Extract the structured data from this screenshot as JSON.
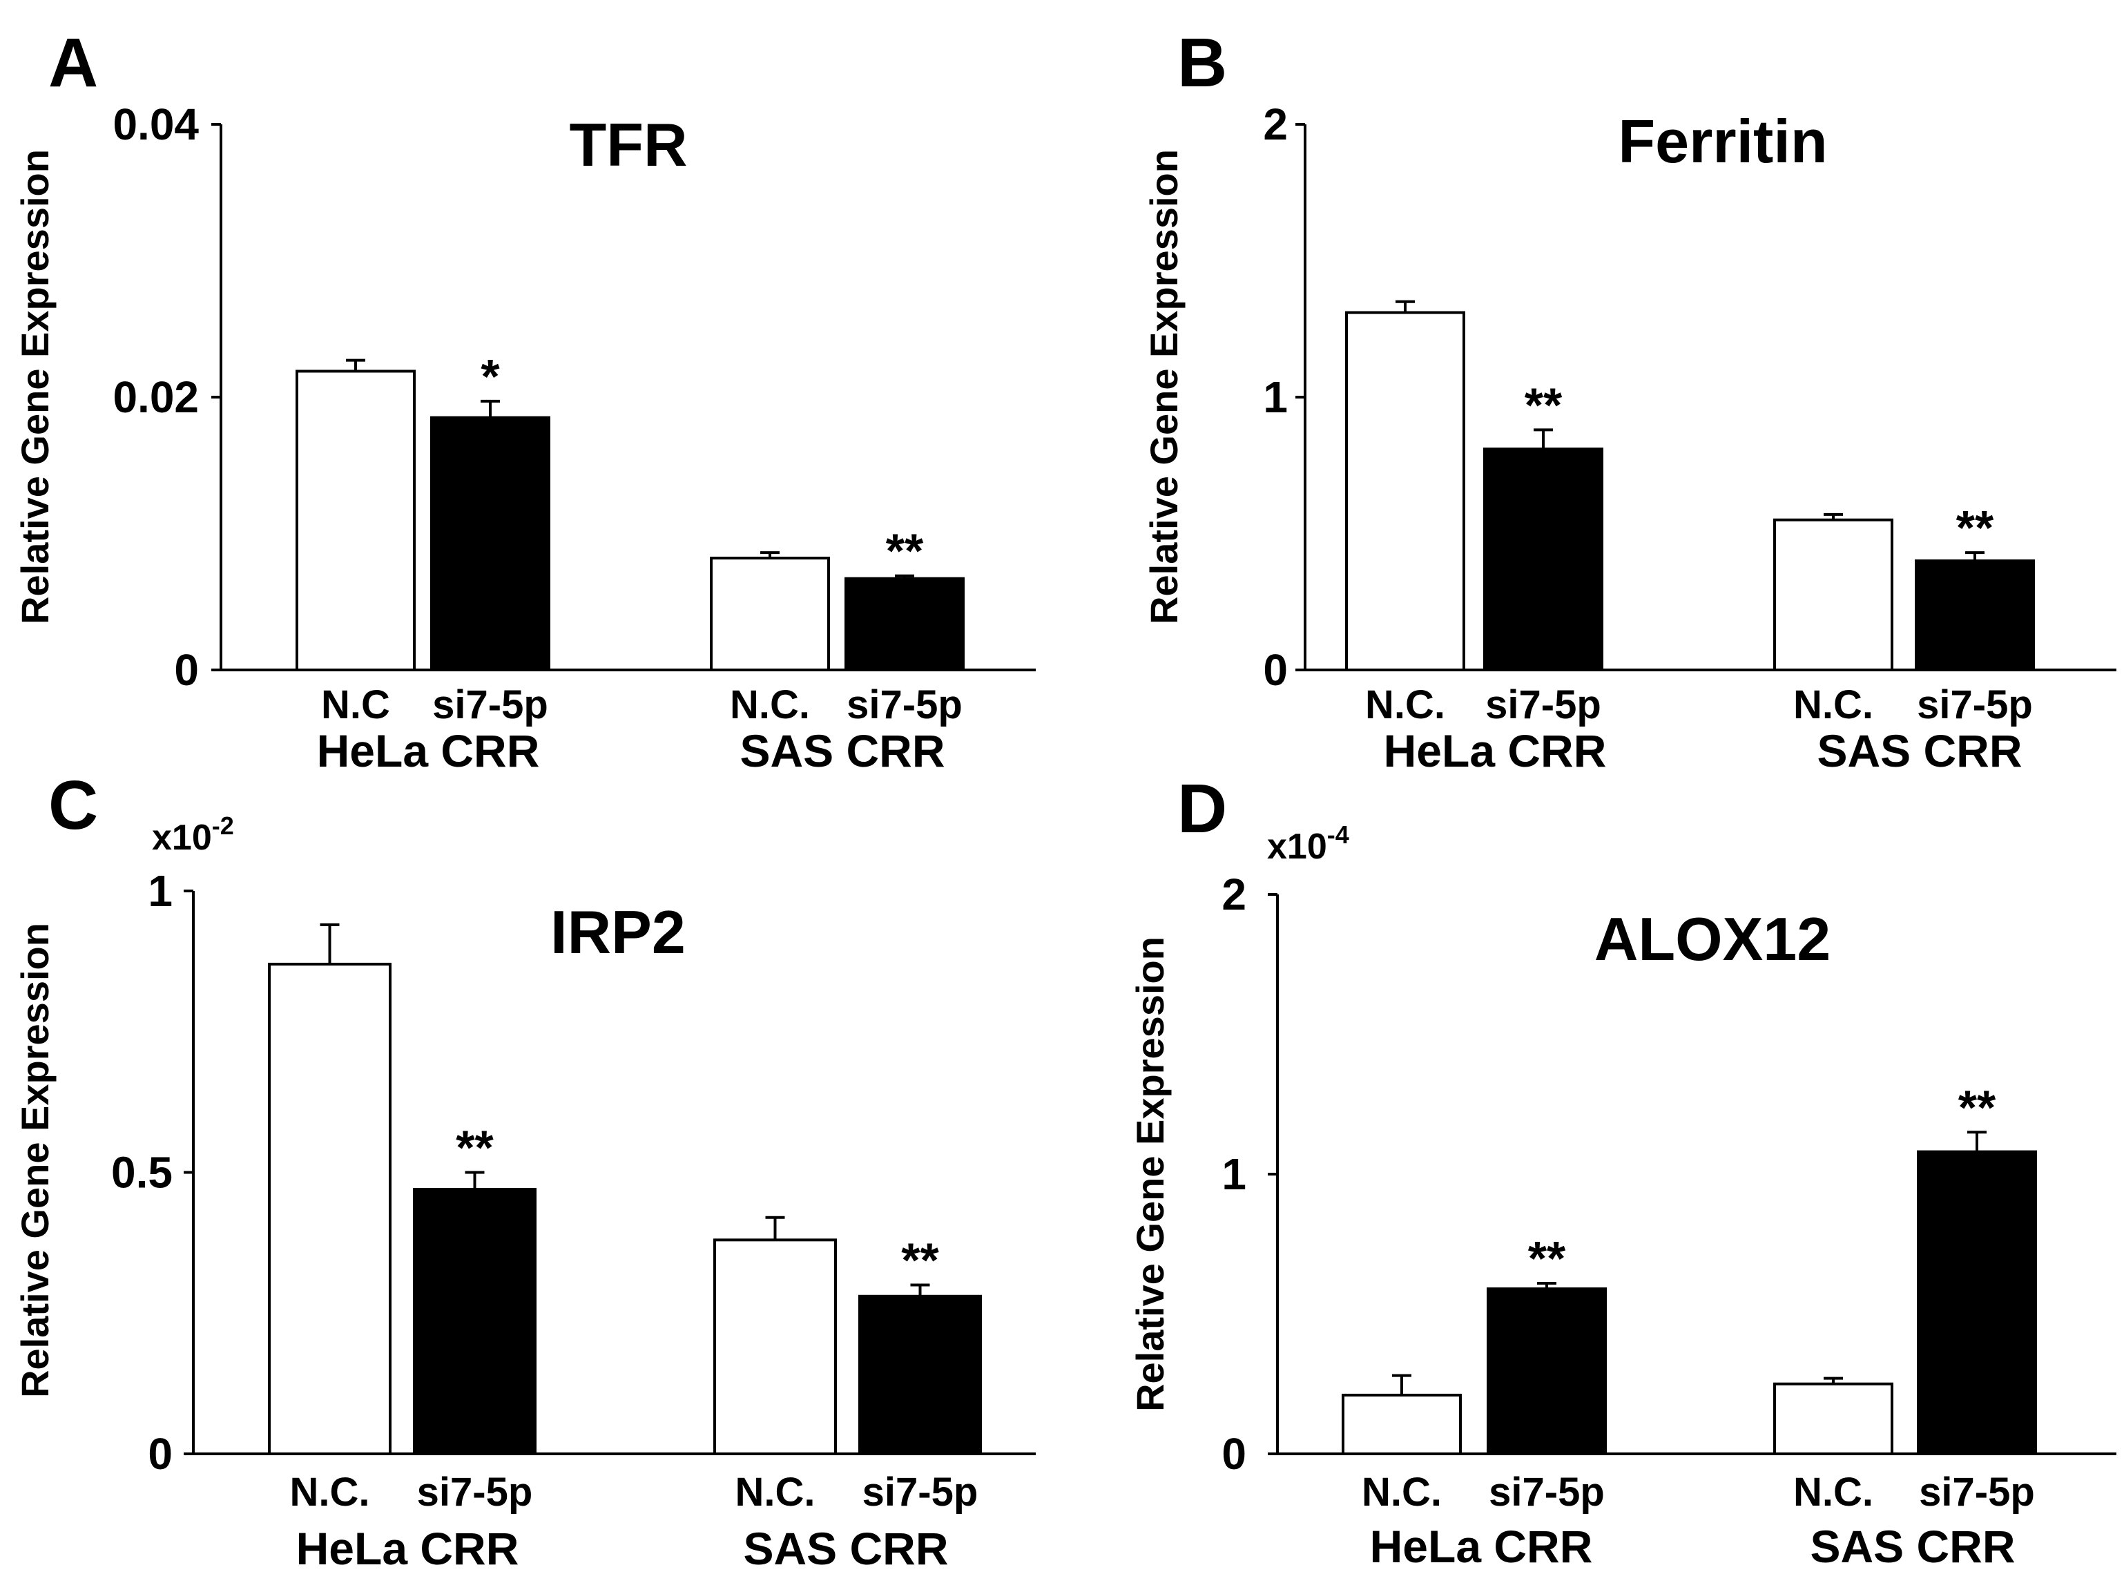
{
  "chart_data": [
    {
      "panel": "A",
      "type": "bar",
      "title": "TFR",
      "ylabel": "Relative Gene Expression",
      "multiplier": "",
      "ylim": [
        0,
        0.04
      ],
      "yticks": [
        {
          "v": 0,
          "label": "0"
        },
        {
          "v": 0.02,
          "label": "0.02"
        },
        {
          "v": 0.04,
          "label": "0.04"
        }
      ],
      "groups": [
        {
          "name": "HeLa CRR",
          "bars": [
            {
              "label": "N.C",
              "value": 0.0219,
              "error": 0.0008,
              "fill": "#ffffff",
              "sig": ""
            },
            {
              "label": "si7-5p",
              "value": 0.0185,
              "error": 0.0012,
              "fill": "#000000",
              "sig": "*"
            }
          ]
        },
        {
          "name": "SAS CRR",
          "bars": [
            {
              "label": "N.C.",
              "value": 0.0082,
              "error": 0.0004,
              "fill": "#ffffff",
              "sig": ""
            },
            {
              "label": "si7-5p",
              "value": 0.0067,
              "error": 0.0002,
              "fill": "#000000",
              "sig": "**"
            }
          ]
        }
      ]
    },
    {
      "panel": "B",
      "type": "bar",
      "title": "Ferritin",
      "ylabel": "Relative Gene Expression",
      "multiplier": "",
      "ylim": [
        0,
        2
      ],
      "yticks": [
        {
          "v": 0,
          "label": "0"
        },
        {
          "v": 1,
          "label": "1"
        },
        {
          "v": 2,
          "label": "2"
        }
      ],
      "groups": [
        {
          "name": "HeLa CRR",
          "bars": [
            {
              "label": "N.C.",
              "value": 1.31,
              "error": 0.04,
              "fill": "#ffffff",
              "sig": ""
            },
            {
              "label": "si7-5p",
              "value": 0.81,
              "error": 0.07,
              "fill": "#000000",
              "sig": "**"
            }
          ]
        },
        {
          "name": "SAS CRR",
          "bars": [
            {
              "label": "N.C.",
              "value": 0.55,
              "error": 0.02,
              "fill": "#ffffff",
              "sig": ""
            },
            {
              "label": "si7-5p",
              "value": 0.4,
              "error": 0.03,
              "fill": "#000000",
              "sig": "**"
            }
          ]
        }
      ]
    },
    {
      "panel": "C",
      "type": "bar",
      "title": "IRP2",
      "ylabel": "Relative Gene Expression",
      "multiplier": "x10",
      "multiplier_exp": "-2",
      "ylim": [
        0,
        1
      ],
      "yticks": [
        {
          "v": 0,
          "label": "0"
        },
        {
          "v": 0.5,
          "label": "0.5"
        },
        {
          "v": 1,
          "label": "1"
        }
      ],
      "groups": [
        {
          "name": "HeLa CRR",
          "bars": [
            {
              "label": "N.C.",
              "value": 0.87,
              "error": 0.07,
              "fill": "#ffffff",
              "sig": ""
            },
            {
              "label": "si7-5p",
              "value": 0.47,
              "error": 0.03,
              "fill": "#000000",
              "sig": "**"
            }
          ]
        },
        {
          "name": "SAS CRR",
          "bars": [
            {
              "label": "N.C.",
              "value": 0.38,
              "error": 0.04,
              "fill": "#ffffff",
              "sig": ""
            },
            {
              "label": "si7-5p",
              "value": 0.28,
              "error": 0.02,
              "fill": "#000000",
              "sig": "**"
            }
          ]
        }
      ]
    },
    {
      "panel": "D",
      "type": "bar",
      "title": "ALOX12",
      "ylabel": "Relative Gene Expression",
      "multiplier": "x10",
      "multiplier_exp": "-4",
      "ylim": [
        0,
        2
      ],
      "yticks": [
        {
          "v": 0,
          "label": "0"
        },
        {
          "v": 1,
          "label": "1"
        },
        {
          "v": 2,
          "label": "2"
        }
      ],
      "groups": [
        {
          "name": "HeLa CRR",
          "bars": [
            {
              "label": "N.C.",
              "value": 0.21,
              "error": 0.07,
              "fill": "#ffffff",
              "sig": ""
            },
            {
              "label": "si7-5p",
              "value": 0.59,
              "error": 0.02,
              "fill": "#000000",
              "sig": "**"
            }
          ]
        },
        {
          "name": "SAS CRR",
          "bars": [
            {
              "label": "N.C.",
              "value": 0.25,
              "error": 0.02,
              "fill": "#ffffff",
              "sig": ""
            },
            {
              "label": "si7-5p",
              "value": 1.08,
              "error": 0.07,
              "fill": "#000000",
              "sig": "**"
            }
          ]
        }
      ]
    }
  ]
}
